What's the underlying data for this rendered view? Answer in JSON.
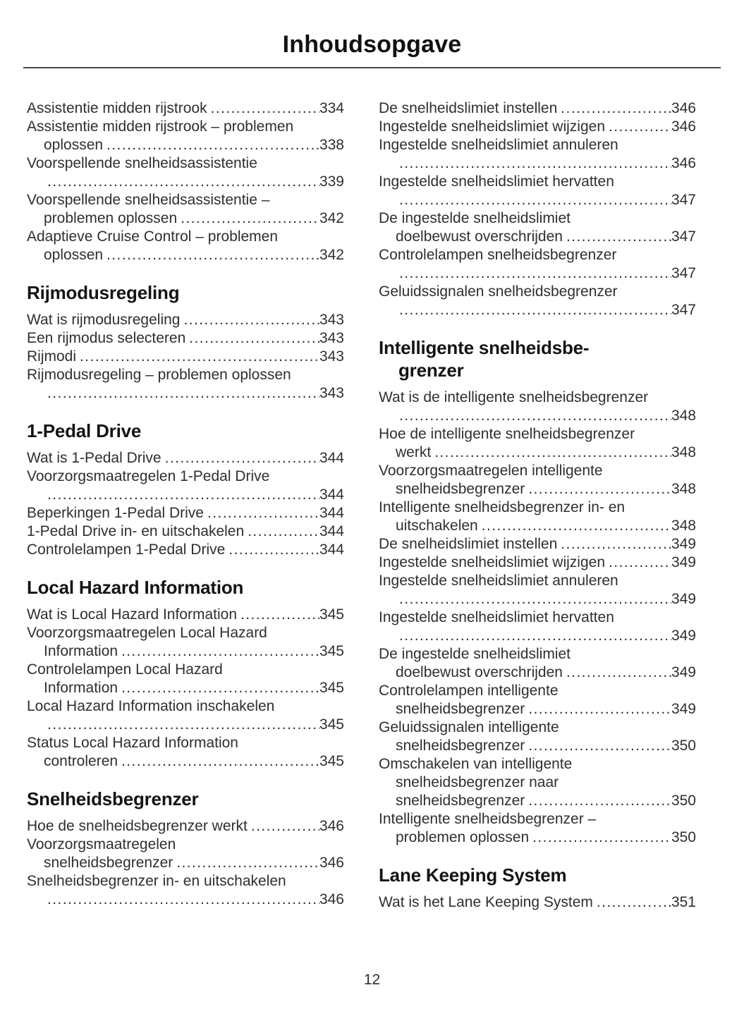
{
  "page": {
    "title": "Inhoudsopgave",
    "number": "12"
  },
  "toc": {
    "left": [
      {
        "heading": null,
        "entries": [
          {
            "lines": [
              {
                "t": "Assistentie midden rijstrook",
                "p": "334"
              }
            ]
          },
          {
            "lines": [
              {
                "t": "Assistentie midden rijstrook – problemen"
              },
              {
                "t": "oplossen",
                "p": "338",
                "i": true
              }
            ]
          },
          {
            "lines": [
              {
                "t": "Voorspellende snelheidsassistentie"
              },
              {
                "t": "",
                "p": "339",
                "i": true
              }
            ]
          },
          {
            "lines": [
              {
                "t": "Voorspellende snelheidsassistentie –"
              },
              {
                "t": "problemen oplossen",
                "p": "342",
                "i": true
              }
            ]
          },
          {
            "lines": [
              {
                "t": "Adaptieve Cruise Control – problemen"
              },
              {
                "t": "oplossen",
                "p": "342",
                "i": true
              }
            ]
          }
        ]
      },
      {
        "heading": [
          "Rijmodusregeling"
        ],
        "entries": [
          {
            "lines": [
              {
                "t": "Wat is rijmodusregeling",
                "p": "343"
              }
            ]
          },
          {
            "lines": [
              {
                "t": "Een rijmodus selecteren",
                "p": "343"
              }
            ]
          },
          {
            "lines": [
              {
                "t": "Rijmodi",
                "p": "343"
              }
            ]
          },
          {
            "lines": [
              {
                "t": "Rijmodusregeling – problemen oplossen"
              },
              {
                "t": "",
                "p": "343",
                "i": true
              }
            ]
          }
        ]
      },
      {
        "heading": [
          "1-Pedal Drive"
        ],
        "entries": [
          {
            "lines": [
              {
                "t": "Wat is 1-Pedal Drive",
                "p": "344"
              }
            ]
          },
          {
            "lines": [
              {
                "t": "Voorzorgsmaatregelen 1-Pedal Drive"
              },
              {
                "t": "",
                "p": "344",
                "i": true
              }
            ]
          },
          {
            "lines": [
              {
                "t": "Beperkingen 1-Pedal Drive",
                "p": "344"
              }
            ]
          },
          {
            "lines": [
              {
                "t": "1-Pedal Drive in- en uitschakelen",
                "p": "344"
              }
            ]
          },
          {
            "lines": [
              {
                "t": "Controlelampen 1-Pedal Drive",
                "p": "344"
              }
            ]
          }
        ]
      },
      {
        "heading": [
          "Local Hazard Information"
        ],
        "entries": [
          {
            "lines": [
              {
                "t": "Wat is Local Hazard Information",
                "p": "345"
              }
            ]
          },
          {
            "lines": [
              {
                "t": "Voorzorgsmaatregelen Local Hazard"
              },
              {
                "t": "Information",
                "p": "345",
                "i": true
              }
            ]
          },
          {
            "lines": [
              {
                "t": "Controlelampen Local Hazard"
              },
              {
                "t": "Information",
                "p": "345",
                "i": true
              }
            ]
          },
          {
            "lines": [
              {
                "t": "Local Hazard Information inschakelen"
              },
              {
                "t": "",
                "p": "345",
                "i": true
              }
            ]
          },
          {
            "lines": [
              {
                "t": "Status Local Hazard Information"
              },
              {
                "t": "controleren",
                "p": "345",
                "i": true
              }
            ]
          }
        ]
      },
      {
        "heading": [
          "Snelheidsbegrenzer"
        ],
        "entries": [
          {
            "lines": [
              {
                "t": "Hoe de snelheidsbegrenzer werkt",
                "p": "346"
              }
            ]
          },
          {
            "lines": [
              {
                "t": "Voorzorgsmaatregelen"
              },
              {
                "t": "snelheidsbegrenzer",
                "p": "346",
                "i": true
              }
            ]
          },
          {
            "lines": [
              {
                "t": "Snelheidsbegrenzer in- en uitschakelen"
              },
              {
                "t": "",
                "p": "346",
                "i": true
              }
            ]
          }
        ]
      }
    ],
    "right": [
      {
        "heading": null,
        "entries": [
          {
            "lines": [
              {
                "t": "De snelheidslimiet instellen",
                "p": "346"
              }
            ]
          },
          {
            "lines": [
              {
                "t": "Ingestelde snelheidslimiet wijzigen",
                "p": "346"
              }
            ]
          },
          {
            "lines": [
              {
                "t": "Ingestelde snelheidslimiet annuleren"
              },
              {
                "t": "",
                "p": "346",
                "i": true
              }
            ]
          },
          {
            "lines": [
              {
                "t": "Ingestelde snelheidslimiet hervatten"
              },
              {
                "t": "",
                "p": "347",
                "i": true
              }
            ]
          },
          {
            "lines": [
              {
                "t": "De ingestelde snelheidslimiet"
              },
              {
                "t": "doelbewust overschrijden",
                "p": "347",
                "i": true
              }
            ]
          },
          {
            "lines": [
              {
                "t": "Controlelampen snelheidsbegrenzer"
              },
              {
                "t": "",
                "p": "347",
                "i": true
              }
            ]
          },
          {
            "lines": [
              {
                "t": "Geluidssignalen snelheidsbegrenzer"
              },
              {
                "t": "",
                "p": "347",
                "i": true
              }
            ]
          }
        ]
      },
      {
        "heading": [
          "Intelligente snelheidsbe-",
          "grenzer"
        ],
        "entries": [
          {
            "lines": [
              {
                "t": "Wat is de intelligente snelheidsbegrenzer"
              },
              {
                "t": "",
                "p": "348",
                "i": true
              }
            ]
          },
          {
            "lines": [
              {
                "t": "Hoe de intelligente snelheidsbegrenzer"
              },
              {
                "t": "werkt",
                "p": "348",
                "i": true
              }
            ]
          },
          {
            "lines": [
              {
                "t": "Voorzorgsmaatregelen intelligente"
              },
              {
                "t": "snelheidsbegrenzer",
                "p": "348",
                "i": true
              }
            ]
          },
          {
            "lines": [
              {
                "t": "Intelligente snelheidsbegrenzer in- en"
              },
              {
                "t": "uitschakelen",
                "p": "348",
                "i": true
              }
            ]
          },
          {
            "lines": [
              {
                "t": "De snelheidslimiet instellen",
                "p": "349"
              }
            ]
          },
          {
            "lines": [
              {
                "t": "Ingestelde snelheidslimiet wijzigen",
                "p": "349"
              }
            ]
          },
          {
            "lines": [
              {
                "t": "Ingestelde snelheidslimiet annuleren"
              },
              {
                "t": "",
                "p": "349",
                "i": true
              }
            ]
          },
          {
            "lines": [
              {
                "t": "Ingestelde snelheidslimiet hervatten"
              },
              {
                "t": "",
                "p": "349",
                "i": true
              }
            ]
          },
          {
            "lines": [
              {
                "t": "De ingestelde snelheidslimiet"
              },
              {
                "t": "doelbewust overschrijden",
                "p": "349",
                "i": true
              }
            ]
          },
          {
            "lines": [
              {
                "t": "Controlelampen intelligente"
              },
              {
                "t": "snelheidsbegrenzer",
                "p": "349",
                "i": true
              }
            ]
          },
          {
            "lines": [
              {
                "t": "Geluidssignalen intelligente"
              },
              {
                "t": "snelheidsbegrenzer",
                "p": "350",
                "i": true
              }
            ]
          },
          {
            "lines": [
              {
                "t": "Omschakelen van intelligente"
              },
              {
                "t": "snelheidsbegrenzer naar",
                "i": true
              },
              {
                "t": "snelheidsbegrenzer",
                "p": "350",
                "i": true
              }
            ]
          },
          {
            "lines": [
              {
                "t": "Intelligente snelheidsbegrenzer –"
              },
              {
                "t": "problemen oplossen",
                "p": "350",
                "i": true
              }
            ]
          }
        ]
      },
      {
        "heading": [
          "Lane Keeping System"
        ],
        "entries": [
          {
            "lines": [
              {
                "t": "Wat is het Lane Keeping System",
                "p": "351"
              }
            ]
          }
        ]
      }
    ]
  }
}
